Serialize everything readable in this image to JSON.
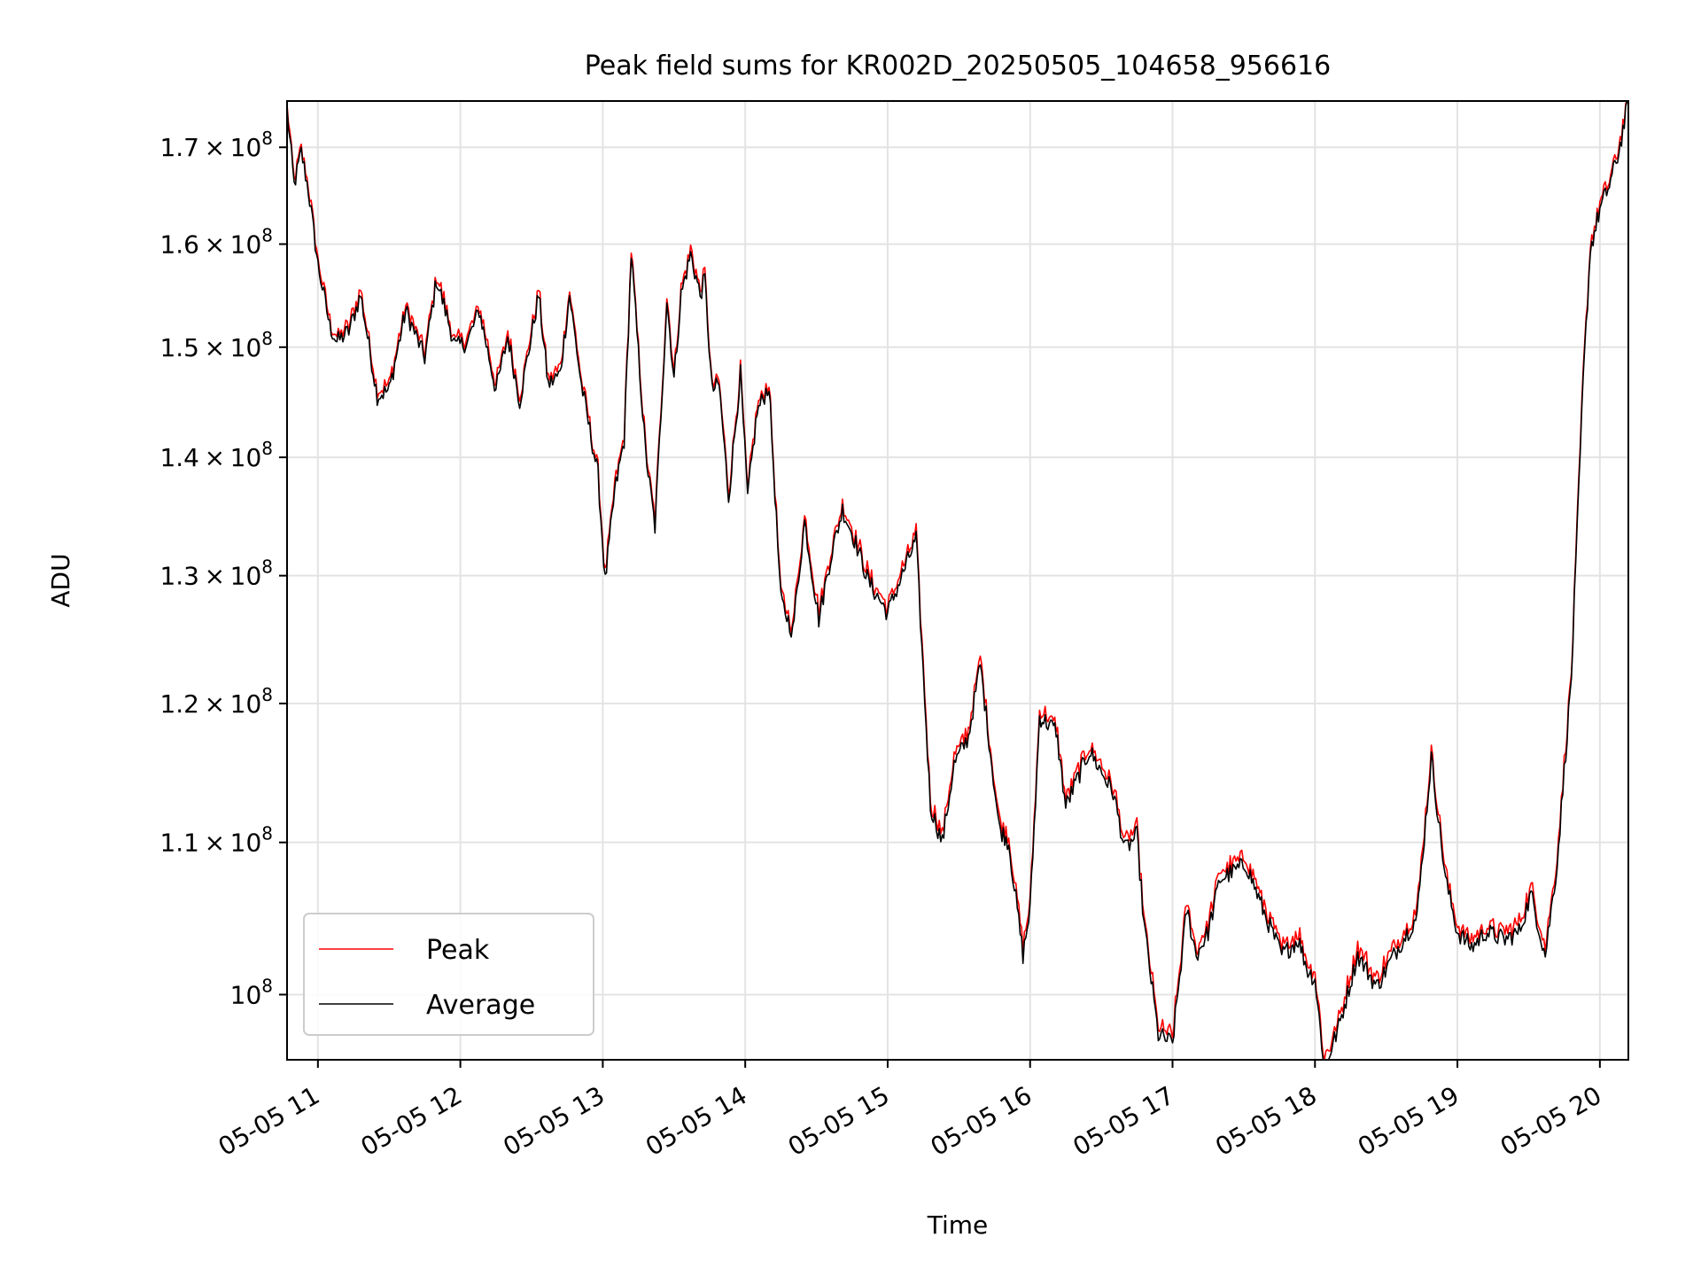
{
  "chart_data": {
    "type": "line",
    "title": "Peak field sums for KR002D_20250505_104658_956616",
    "xlabel": "Time",
    "ylabel": "ADU",
    "y_scale": "log",
    "ylim": [
      96000000,
      175000000
    ],
    "xlim": [
      "2025-05-05 10:47",
      "2025-05-05 20:12"
    ],
    "grid": true,
    "legend_position": "lower-left",
    "x_ticks": [
      {
        "t": "2025-05-05 11:00",
        "label": "05-05 11"
      },
      {
        "t": "2025-05-05 12:00",
        "label": "05-05 12"
      },
      {
        "t": "2025-05-05 13:00",
        "label": "05-05 13"
      },
      {
        "t": "2025-05-05 14:00",
        "label": "05-05 14"
      },
      {
        "t": "2025-05-05 15:00",
        "label": "05-05 15"
      },
      {
        "t": "2025-05-05 16:00",
        "label": "05-05 16"
      },
      {
        "t": "2025-05-05 17:00",
        "label": "05-05 17"
      },
      {
        "t": "2025-05-05 18:00",
        "label": "05-05 18"
      },
      {
        "t": "2025-05-05 19:00",
        "label": "05-05 19"
      },
      {
        "t": "2025-05-05 20:00",
        "label": "05-05 20"
      }
    ],
    "y_ticks": [
      {
        "value": 100000000,
        "mant": "",
        "exp": "8"
      },
      {
        "value": 110000000,
        "mant": "1.1",
        "exp": "8"
      },
      {
        "value": 120000000,
        "mant": "1.2",
        "exp": "8"
      },
      {
        "value": 130000000,
        "mant": "1.3",
        "exp": "8"
      },
      {
        "value": 140000000,
        "mant": "1.4",
        "exp": "8"
      },
      {
        "value": 150000000,
        "mant": "1.5",
        "exp": "8"
      },
      {
        "value": 160000000,
        "mant": "1.6",
        "exp": "8"
      },
      {
        "value": 170000000,
        "mant": "1.7",
        "exp": "8"
      }
    ],
    "series": [
      {
        "name": "Peak",
        "color": "#ff0000",
        "offset": 500000
      },
      {
        "name": "Average",
        "color": "#000000",
        "offset": 0
      }
    ],
    "avg_points": [
      [
        "2025-05-05 10:47",
        174000000
      ],
      [
        "2025-05-05 10:50",
        166000000
      ],
      [
        "2025-05-05 10:53",
        169500000
      ],
      [
        "2025-05-05 10:56",
        165500000
      ],
      [
        "2025-05-05 11:00",
        158000000
      ],
      [
        "2025-05-05 11:05",
        152000000
      ],
      [
        "2025-05-05 11:08",
        150500000
      ],
      [
        "2025-05-05 11:13",
        151500000
      ],
      [
        "2025-05-05 11:18",
        155000000
      ],
      [
        "2025-05-05 11:25",
        145500000
      ],
      [
        "2025-05-05 11:30",
        146000000
      ],
      [
        "2025-05-05 11:37",
        153500000
      ],
      [
        "2025-05-05 11:45",
        149000000
      ],
      [
        "2025-05-05 11:50",
        156500000
      ],
      [
        "2025-05-05 11:58",
        150000000
      ],
      [
        "2025-05-05 12:03",
        150500000
      ],
      [
        "2025-05-05 12:08",
        153500000
      ],
      [
        "2025-05-05 12:15",
        146000000
      ],
      [
        "2025-05-05 12:20",
        151000000
      ],
      [
        "2025-05-05 12:25",
        145000000
      ],
      [
        "2025-05-05 12:33",
        155000000
      ],
      [
        "2025-05-05 12:37",
        146500000
      ],
      [
        "2025-05-05 12:42",
        147500000
      ],
      [
        "2025-05-05 12:46",
        155000000
      ],
      [
        "2025-05-05 12:51",
        146500000
      ],
      [
        "2025-05-05 12:58",
        138500000
      ],
      [
        "2025-05-05 13:01",
        129500000
      ],
      [
        "2025-05-05 13:05",
        137000000
      ],
      [
        "2025-05-05 13:09",
        141500000
      ],
      [
        "2025-05-05 13:12",
        159000000
      ],
      [
        "2025-05-05 13:18",
        140500000
      ],
      [
        "2025-05-05 13:22",
        134000000
      ],
      [
        "2025-05-05 13:27",
        154500000
      ],
      [
        "2025-05-05 13:30",
        147000000
      ],
      [
        "2025-05-05 13:33",
        155000000
      ],
      [
        "2025-05-05 13:37",
        159000000
      ],
      [
        "2025-05-05 13:41",
        155000000
      ],
      [
        "2025-05-05 13:43",
        156500000
      ],
      [
        "2025-05-05 13:46",
        146000000
      ],
      [
        "2025-05-05 13:49",
        146500000
      ],
      [
        "2025-05-05 13:53",
        136500000
      ],
      [
        "2025-05-05 13:58",
        147500000
      ],
      [
        "2025-05-05 14:01",
        136500000
      ],
      [
        "2025-05-05 14:05",
        144000000
      ],
      [
        "2025-05-05 14:10",
        146500000
      ],
      [
        "2025-05-05 14:15",
        128000000
      ],
      [
        "2025-05-05 14:20",
        125500000
      ],
      [
        "2025-05-05 14:25",
        134500000
      ],
      [
        "2025-05-05 14:31",
        126500000
      ],
      [
        "2025-05-05 14:36",
        131500000
      ],
      [
        "2025-05-05 14:41",
        135500000
      ],
      [
        "2025-05-05 14:46",
        133000000
      ],
      [
        "2025-05-05 14:52",
        129500000
      ],
      [
        "2025-05-05 15:00",
        127000000
      ],
      [
        "2025-05-05 15:05",
        129500000
      ],
      [
        "2025-05-05 15:12",
        133000000
      ],
      [
        "2025-05-05 15:18",
        112500000
      ],
      [
        "2025-05-05 15:23",
        110000000
      ],
      [
        "2025-05-05 15:28",
        115500000
      ],
      [
        "2025-05-05 15:34",
        117500000
      ],
      [
        "2025-05-05 15:39",
        123000000
      ],
      [
        "2025-05-05 15:47",
        111000000
      ],
      [
        "2025-05-05 15:51",
        110000000
      ],
      [
        "2025-05-05 15:57",
        102500000
      ],
      [
        "2025-05-05 16:00",
        105500000
      ],
      [
        "2025-05-05 16:04",
        119000000
      ],
      [
        "2025-05-05 16:11",
        118000000
      ],
      [
        "2025-05-05 16:15",
        112500000
      ],
      [
        "2025-05-05 16:25",
        116500000
      ],
      [
        "2025-05-05 16:35",
        113500000
      ],
      [
        "2025-05-05 16:40",
        109500000
      ],
      [
        "2025-05-05 16:45",
        110500000
      ],
      [
        "2025-05-05 16:48",
        104500000
      ],
      [
        "2025-05-05 16:54",
        97500000
      ],
      [
        "2025-05-05 17:00",
        97000000
      ],
      [
        "2025-05-05 17:06",
        105500000
      ],
      [
        "2025-05-05 17:10",
        102500000
      ],
      [
        "2025-05-05 17:15",
        104000000
      ],
      [
        "2025-05-05 17:20",
        107500000
      ],
      [
        "2025-05-05 17:31",
        108500000
      ],
      [
        "2025-05-05 17:38",
        105500000
      ],
      [
        "2025-05-05 17:46",
        102500000
      ],
      [
        "2025-05-05 17:53",
        103500000
      ],
      [
        "2025-05-05 17:57",
        101500000
      ],
      [
        "2025-05-05 18:00",
        101000000
      ],
      [
        "2025-05-05 18:04",
        95500000
      ],
      [
        "2025-05-05 18:10",
        98000000
      ],
      [
        "2025-05-05 18:18",
        102500000
      ],
      [
        "2025-05-05 18:26",
        100500000
      ],
      [
        "2025-05-05 18:35",
        103000000
      ],
      [
        "2025-05-05 18:43",
        105000000
      ],
      [
        "2025-05-05 18:49",
        116000000
      ],
      [
        "2025-05-05 18:55",
        107500000
      ],
      [
        "2025-05-05 19:00",
        104000000
      ],
      [
        "2025-05-05 19:06",
        103000000
      ],
      [
        "2025-05-05 19:12",
        104000000
      ],
      [
        "2025-05-05 19:20",
        103500000
      ],
      [
        "2025-05-05 19:26",
        104000000
      ],
      [
        "2025-05-05 19:31",
        106500000
      ],
      [
        "2025-05-05 19:37",
        102500000
      ],
      [
        "2025-05-05 19:42",
        108500000
      ],
      [
        "2025-05-05 19:48",
        122000000
      ],
      [
        "2025-05-05 19:53",
        147000000
      ],
      [
        "2025-05-05 19:56",
        159500000
      ],
      [
        "2025-05-05 20:00",
        163500000
      ],
      [
        "2025-05-05 20:04",
        166000000
      ],
      [
        "2025-05-05 20:08",
        169500000
      ],
      [
        "2025-05-05 20:12",
        175000000
      ]
    ]
  }
}
